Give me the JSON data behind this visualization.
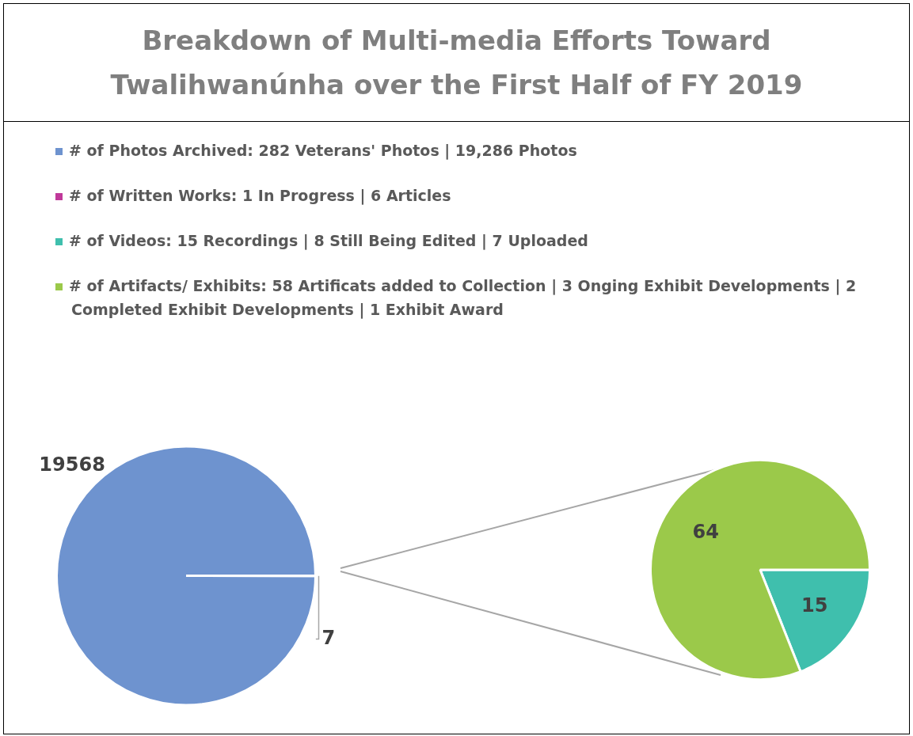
{
  "chart_data": [
    {
      "type": "pie",
      "title": "Breakdown of Multi-media Efforts Toward Twalihwanúnha over the First Half of FY 2019",
      "categories": [
        "# of Photos Archived: 282 Veterans' Photos | 19,286 Photos",
        "# of Written Works: 1 In Progress | 6 Articles"
      ],
      "values": [
        19568,
        7
      ],
      "colors": [
        "#6e93cf",
        "#c0399a"
      ],
      "data_labels": true,
      "legend": "top"
    },
    {
      "type": "pie",
      "categories": [
        "# of Videos:  15 Recordings | 8 Still Being Edited | 7 Uploaded",
        "# of Artifacts/ Exhibits: 58 Artificats added to Collection | 3 Onging Exhibit Developments | 2 Completed Exhibit Developments | 1 Exhibit Award"
      ],
      "values": [
        15,
        64
      ],
      "colors": [
        "#3fbfad",
        "#9bc94a"
      ],
      "data_labels": true,
      "legend": "top"
    }
  ]
}
